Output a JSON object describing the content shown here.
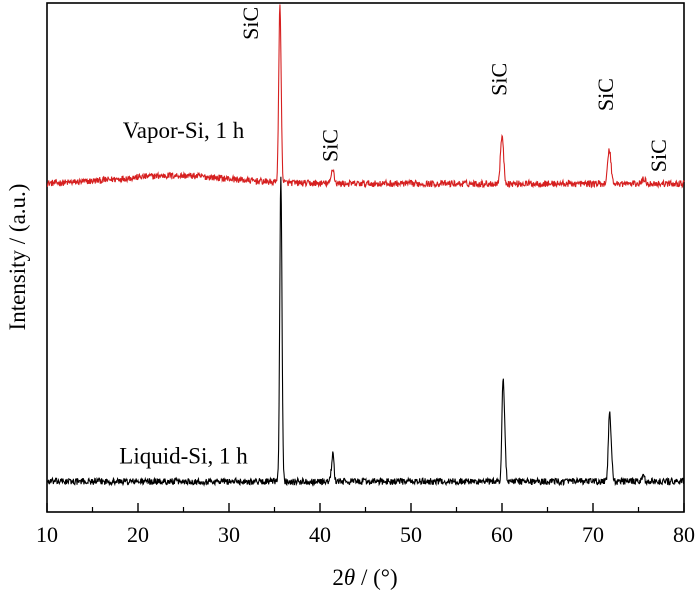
{
  "chart_data": {
    "type": "line",
    "title": "",
    "xlabel": "2θ / (°)",
    "xlabel_parts": [
      "2",
      "θ",
      " / (°)"
    ],
    "ylabel": "Intensity / (a.u.)",
    "xlim": [
      10,
      80
    ],
    "xticks": [
      10,
      20,
      30,
      40,
      50,
      60,
      70,
      80
    ],
    "y_tick_labels": false,
    "ylim": [
      0,
      100
    ],
    "grid": false,
    "colors": {
      "top": "#d62020",
      "bottom": "#000000"
    },
    "series": [
      {
        "name": "Vapor-Si, 1 h",
        "color": "#d62020",
        "baseline": 64.5,
        "peaks": [
          {
            "x": 35.6,
            "height": 35.0,
            "width": 0.13
          },
          {
            "x": 41.4,
            "height": 3.0,
            "width": 0.15
          },
          {
            "x": 60.0,
            "height": 9.5,
            "width": 0.17
          },
          {
            "x": 71.8,
            "height": 6.7,
            "width": 0.18
          },
          {
            "x": 75.6,
            "height": 0.9,
            "width": 0.2
          }
        ],
        "hump": {
          "x": 24,
          "height": 1.6,
          "width": 6
        }
      },
      {
        "name": "Liquid-Si, 1 h",
        "color": "#000000",
        "baseline": 6.0,
        "peaks": [
          {
            "x": 35.7,
            "height": 60.0,
            "width": 0.12
          },
          {
            "x": 41.4,
            "height": 5.4,
            "width": 0.13
          },
          {
            "x": 60.1,
            "height": 18.4,
            "width": 0.12
          },
          {
            "x": 60.3,
            "height": 7.0,
            "width": 0.12
          },
          {
            "x": 71.8,
            "height": 11.5,
            "width": 0.13
          },
          {
            "x": 72.0,
            "height": 5.0,
            "width": 0.13
          },
          {
            "x": 75.5,
            "height": 1.0,
            "width": 0.15
          }
        ],
        "hump": null
      }
    ],
    "annotations": [
      {
        "text": "SiC",
        "x": 33.2,
        "y": 96,
        "rotate": -90
      },
      {
        "text": "SiC",
        "x": 41.9,
        "y": 72,
        "rotate": -90
      },
      {
        "text": "SiC",
        "x": 60.5,
        "y": 85,
        "rotate": -90
      },
      {
        "text": "SiC",
        "x": 72.2,
        "y": 82,
        "rotate": -90
      },
      {
        "text": "SiC",
        "x": 78.0,
        "y": 70,
        "rotate": -90
      }
    ]
  }
}
